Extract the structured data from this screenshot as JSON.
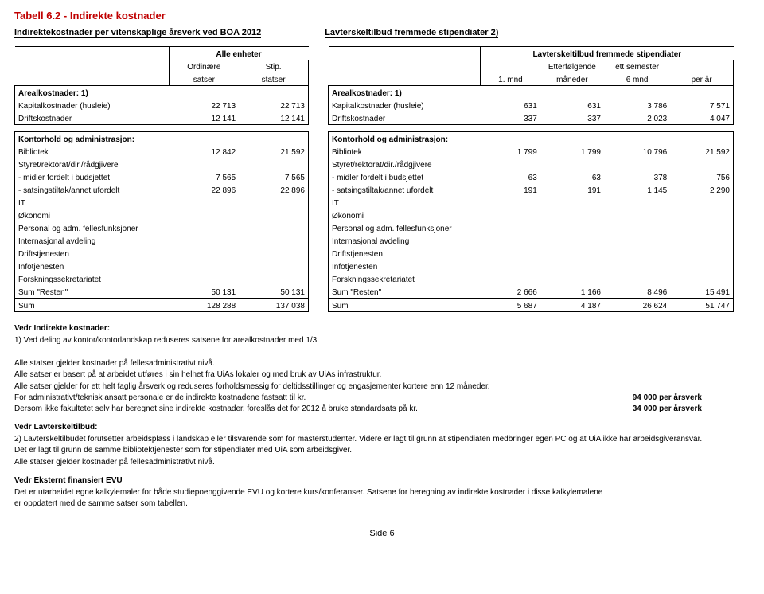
{
  "title": "Tabell 6.2 - Indirekte kostnader",
  "subtitle_left": "Indirektekostnader per vitenskaplige årsverk ved BOA 2012",
  "subtitle_right": "Lavterskeltilbud fremmede stipendiater   2)",
  "left": {
    "header_group": "Alle enheter",
    "header_c2a": "Ordinære",
    "header_c2b": "satser",
    "header_c3a": "Stip.",
    "header_c3b": "statser",
    "areal_heading": "Arealkostnader:   1)",
    "kapital_label": "Kapitalkostnader (husleie)",
    "kapital_c2": "22 713",
    "kapital_c3": "22 713",
    "drift_label": "Driftskostnader",
    "drift_c2": "12 141",
    "drift_c3": "12 141",
    "kontor_heading": "Kontorhold og administrasjon:",
    "bibliotek_label": "Bibliotek",
    "bibliotek_c2": "12 842",
    "bibliotek_c3": "21 592",
    "styret_label": "Styret/rektorat/dir./rådgjivere",
    "midler_label": "  - midler fordelt i budsjettet",
    "midler_c2": "7 565",
    "midler_c3": "7 565",
    "sats_label": "  - satsingstiltak/annet ufordelt",
    "sats_c2": "22 896",
    "sats_c3": "22 896",
    "it_label": "IT",
    "okonomi_label": "Økonomi",
    "personal_label": "Personal og adm. fellesfunksjoner",
    "int_label": "Internasjonal avdeling",
    "driftstj_label": "Driftstjenesten",
    "info_label": "Infotjenesten",
    "forsk_label": "Forskningssekretariatet",
    "sumrest_label": "Sum \"Resten\"",
    "sumrest_c2": "50 131",
    "sumrest_c3": "50 131",
    "sum_label": "Sum",
    "sum_c2": "128 288",
    "sum_c3": "137 038"
  },
  "right": {
    "header_group": "Lavterskeltilbud fremmede stipendiater",
    "header_c3a": "Etterfølgende",
    "header_c4a": "ett semester",
    "header_c2b": "1. mnd",
    "header_c3b": "måneder",
    "header_c4b": "6 mnd",
    "header_c5b": "per år",
    "areal_heading": "Arealkostnader:   1)",
    "kapital_label": "Kapitalkostnader (husleie)",
    "kapital_c2": "631",
    "kapital_c3": "631",
    "kapital_c4": "3 786",
    "kapital_c5": "7 571",
    "drift_label": "Driftskostnader",
    "drift_c2": "337",
    "drift_c3": "337",
    "drift_c4": "2 023",
    "drift_c5": "4 047",
    "kontor_heading": "Kontorhold og administrasjon:",
    "bibliotek_label": "Bibliotek",
    "bibliotek_c2": "1 799",
    "bibliotek_c3": "1 799",
    "bibliotek_c4": "10 796",
    "bibliotek_c5": "21 592",
    "styret_label": "Styret/rektorat/dir./rådgjivere",
    "midler_label": "  - midler fordelt i budsjettet",
    "midler_c2": "63",
    "midler_c3": "63",
    "midler_c4": "378",
    "midler_c5": "756",
    "sats_label": "  - satsingstiltak/annet ufordelt",
    "sats_c2": "191",
    "sats_c3": "191",
    "sats_c4": "1 145",
    "sats_c5": "2 290",
    "it_label": "IT",
    "okonomi_label": "Økonomi",
    "personal_label": "Personal og adm. fellesfunksjoner",
    "int_label": "Internasjonal avdeling",
    "driftstj_label": "Driftstjenesten",
    "info_label": "Infotjenesten",
    "forsk_label": "Forskningssekretariatet",
    "sumrest_label": "Sum \"Resten\"",
    "sumrest_c2": "2 666",
    "sumrest_c3": "1 166",
    "sumrest_c4": "8 496",
    "sumrest_c5": "15 491",
    "sum_label": "Sum",
    "sum_c2": "5 687",
    "sum_c3": "4 187",
    "sum_c4": "26 624",
    "sum_c5": "51 747"
  },
  "notes": {
    "h1": "Vedr Indirekte kostnader:",
    "n1": "1)  Ved deling av kontor/kontorlandskap reduseres satsene for arealkostnader med 1/3.",
    "n2": "Alle statser gjelder kostnader på fellesadministrativt nivå.",
    "n3": "Alle satser er basert på at arbeidet utføres i sin helhet fra UiAs lokaler og med bruk av UiAs infrastruktur.",
    "n4": "Alle satser gjelder for ett helt faglig årsverk og reduseres forholdsmessig for deltidsstillinger og engasjementer kortere enn 12 måneder.",
    "n5a": "For administrativt/teknisk ansatt personale er de indirekte kostnadene fastsatt til kr.",
    "n5b": "94 000  per årsverk",
    "n6a": "Dersom ikke fakultetet selv har beregnet sine indirekte kostnader, foreslås det for 2012 å bruke standardsats på kr.",
    "n6b": "34 000  per årsverk",
    "h2": "Vedr Lavterskeltilbud:",
    "n7": "2) Lavterskeltilbudet forutsetter arbeidsplass i landskap eller tilsvarende som for masterstudenter. Videre er lagt til grunn at stipendiaten medbringer egen PC og at UiA ikke har arbeidsgiveransvar.",
    "n8": "   Det er lagt til grunn de samme bibliotektjenester som for stipendiater med UiA som arbeidsgiver.",
    "n9": "   Alle statser gjelder kostnader på fellesadministrativt nivå.",
    "h3": "Vedr Eksternt finansiert EVU",
    "n10": "Det er utarbeidet egne kalkylemaler for både studiepoenggivende EVU og kortere kurs/konferanser. Satsene for beregning av indirekte kostnader i disse kalkylemalene",
    "n11": "er oppdatert med de samme satser som tabellen."
  },
  "pagefoot": "Side 6"
}
